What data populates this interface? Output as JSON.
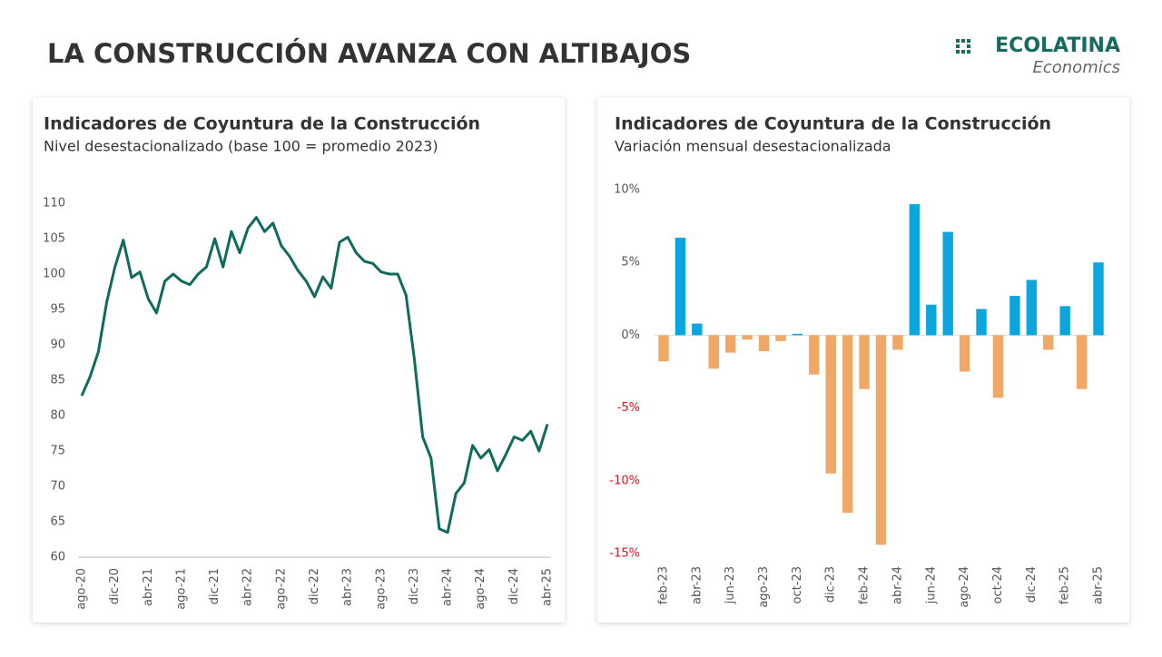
{
  "header": {
    "title": "LA CONSTRUCCIÓN AVANZA CON ALTIBAJOS"
  },
  "logo": {
    "name": "ECOLATINA",
    "tagline": "Economics"
  },
  "chart_data": [
    {
      "type": "line",
      "title": "Indicadores de Coyuntura de la Construcción",
      "subtitle": "Nivel desestacionalizado (base 100 = promedio 2023)",
      "categories": [
        "ago-20",
        null,
        null,
        null,
        "dic-20",
        null,
        null,
        null,
        "abr-21",
        null,
        null,
        null,
        "ago-21",
        null,
        null,
        null,
        "dic-21",
        null,
        null,
        null,
        "abr-22",
        null,
        null,
        null,
        "ago-22",
        null,
        null,
        null,
        "dic-22",
        null,
        null,
        null,
        "abr-23",
        null,
        null,
        null,
        "ago-23",
        null,
        null,
        null,
        "dic-23",
        null,
        null,
        null,
        "abr-24",
        null,
        null,
        null,
        "ago-24",
        null,
        null,
        null,
        "dic-24",
        null,
        null,
        null,
        "abr-25"
      ],
      "values": [
        82.8,
        85.5,
        89,
        96,
        101,
        104.8,
        99.5,
        100.3,
        96.5,
        94.5,
        99,
        100,
        99,
        98.5,
        100,
        101,
        105,
        101,
        106,
        103,
        106.5,
        108,
        106,
        107.2,
        104,
        102.5,
        100.5,
        99,
        96.8,
        99.6,
        98,
        104.5,
        105.2,
        103,
        101.8,
        101.5,
        100.3,
        100,
        100,
        97,
        88,
        77,
        74,
        64,
        63.5,
        69,
        70.5,
        75.8,
        74,
        75.2,
        72.2,
        74.5,
        77,
        76.5,
        77.8,
        75,
        78.8
      ],
      "color": "#0f6b5c",
      "ylim": [
        60,
        110
      ],
      "yticks": [
        60,
        65,
        70,
        75,
        80,
        85,
        90,
        95,
        100,
        105,
        110
      ]
    },
    {
      "type": "bar",
      "title": "Indicadores de Coyuntura de la Construcción",
      "subtitle": "Variación mensual desestacionalizada",
      "categories": [
        "feb-23",
        null,
        "abr-23",
        null,
        "jun-23",
        null,
        "ago-23",
        null,
        "oct-23",
        null,
        "dic-23",
        null,
        "feb-24",
        null,
        "abr-24",
        null,
        "jun-24",
        null,
        "ago-24",
        null,
        "oct-24",
        null,
        "dic-24",
        null,
        "feb-25",
        null,
        "abr-25"
      ],
      "values": [
        -1.8,
        6.7,
        0.8,
        -2.3,
        -1.2,
        -0.3,
        -1.1,
        -0.4,
        0.1,
        -2.7,
        -9.5,
        -12.2,
        -3.7,
        -14.4,
        -1.0,
        9.0,
        2.1,
        7.1,
        -2.5,
        1.8,
        -4.3,
        2.7,
        3.8,
        -1.0,
        2.0,
        -3.7,
        5.0
      ],
      "positive_color": "#0aa6dd",
      "negative_color": "#f0a866",
      "negative_tick_color": "#e0141e",
      "ylim": [
        -15,
        10
      ],
      "yticks": [
        {
          "value": -15,
          "label": "-15%"
        },
        {
          "value": -10,
          "label": "-10%"
        },
        {
          "value": -5,
          "label": "-5%"
        },
        {
          "value": 0,
          "label": "0%"
        },
        {
          "value": 5,
          "label": "5%"
        },
        {
          "value": 10,
          "label": "10%"
        }
      ]
    }
  ]
}
